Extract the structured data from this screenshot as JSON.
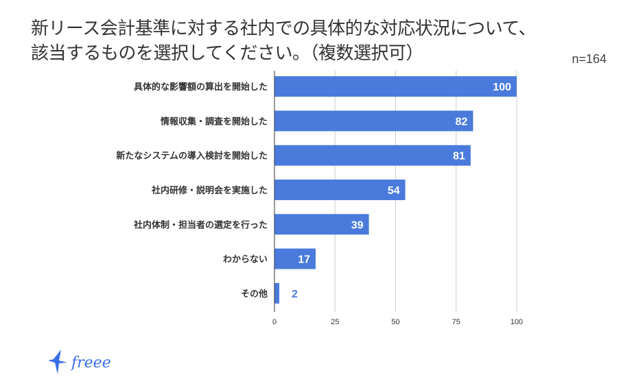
{
  "title_line1": "新リース会計基準に対する社内での具体的な対応状況について、",
  "title_line2": "該当するものを選択してください。（複数選択可）",
  "sample_size": "n=164",
  "logo_text": "freee",
  "colors": {
    "bar": "#4a7bdc",
    "label": "#333333",
    "axis": "#333333",
    "grid": "#cccccc"
  },
  "chart_data": {
    "type": "bar",
    "orientation": "horizontal",
    "categories": [
      "具体的な影響額の算出を開始した",
      "情報収集・調査を開始した",
      "新たなシステムの導入検討を開始した",
      "社内研修・説明会を実施した",
      "社内体制・担当者の選定を行った",
      "わからない",
      "その他"
    ],
    "values": [
      100,
      82,
      81,
      54,
      39,
      17,
      2
    ],
    "xlim": [
      0,
      100
    ],
    "xticks": [
      0,
      25,
      50,
      75,
      100
    ],
    "grid": true,
    "title": "",
    "xlabel": "",
    "ylabel": ""
  }
}
